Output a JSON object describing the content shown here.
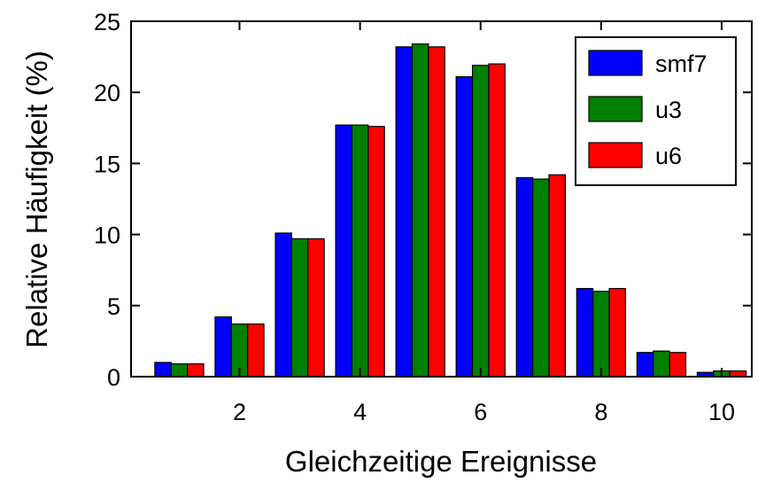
{
  "chart_data": {
    "type": "bar",
    "xlabel": "Gleichzeitige Ereignisse",
    "ylabel": "Relative Häufigkeit (%)",
    "categories": [
      1,
      2,
      3,
      4,
      5,
      6,
      7,
      8,
      9,
      10
    ],
    "xlim": [
      0.2,
      10.5
    ],
    "ylim": [
      0,
      25
    ],
    "xticks": [
      2,
      4,
      6,
      8,
      10
    ],
    "yticks": [
      0,
      5,
      10,
      15,
      20,
      25
    ],
    "grid": false,
    "legend_position": "top-right",
    "series": [
      {
        "name": "smf7",
        "color": "#0000ff",
        "values": [
          1.0,
          4.2,
          10.1,
          17.7,
          23.2,
          21.1,
          14.0,
          6.2,
          1.7,
          0.3
        ]
      },
      {
        "name": "u3",
        "color": "#008000",
        "values": [
          0.9,
          3.7,
          9.7,
          17.7,
          23.4,
          21.9,
          13.9,
          6.0,
          1.8,
          0.4
        ]
      },
      {
        "name": "u6",
        "color": "#ff0000",
        "values": [
          0.9,
          3.7,
          9.7,
          17.6,
          23.2,
          22.0,
          14.2,
          6.2,
          1.7,
          0.4
        ]
      }
    ]
  }
}
